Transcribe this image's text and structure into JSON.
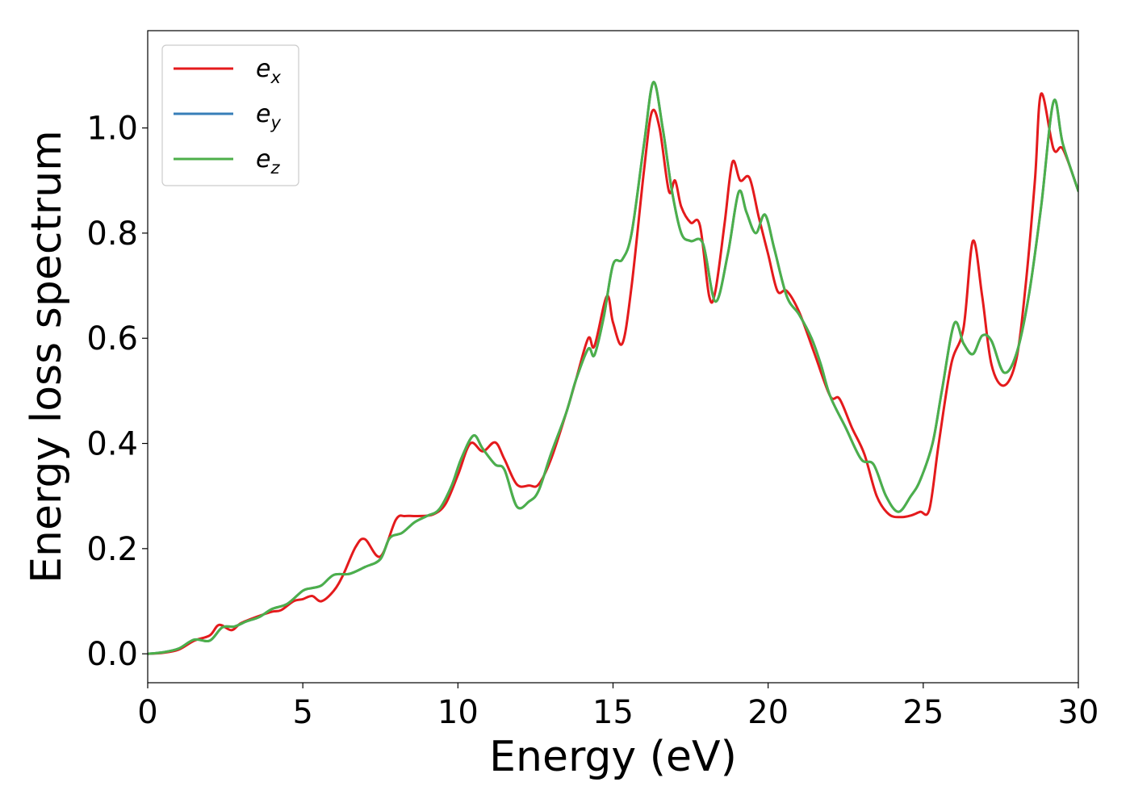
{
  "chart_data": {
    "type": "line",
    "xlabel": "Energy (eV)",
    "ylabel": "Energy loss spectrum",
    "xlim": [
      0,
      30
    ],
    "ylim": [
      -0.055,
      1.185
    ],
    "xticks": [
      0,
      5,
      10,
      15,
      20,
      25,
      30
    ],
    "xtick_labels": [
      "0",
      "5",
      "10",
      "15",
      "20",
      "25",
      "30"
    ],
    "yticks": [
      0.0,
      0.2,
      0.4,
      0.6,
      0.8,
      1.0
    ],
    "ytick_labels": [
      "0.0",
      "0.2",
      "0.4",
      "0.6",
      "0.8",
      "1.0"
    ],
    "grid": false,
    "legend_position": "top-left",
    "series": [
      {
        "name": "e_x",
        "label_base": "e",
        "label_sub": "x",
        "color": "#e41a1c",
        "points": [
          [
            0,
            0
          ],
          [
            0.5,
            0.002
          ],
          [
            1,
            0.008
          ],
          [
            1.5,
            0.025
          ],
          [
            2,
            0.035
          ],
          [
            2.3,
            0.055
          ],
          [
            2.7,
            0.045
          ],
          [
            3,
            0.058
          ],
          [
            3.5,
            0.07
          ],
          [
            4,
            0.08
          ],
          [
            4.3,
            0.083
          ],
          [
            4.7,
            0.1
          ],
          [
            5,
            0.104
          ],
          [
            5.3,
            0.11
          ],
          [
            5.6,
            0.1
          ],
          [
            6,
            0.12
          ],
          [
            6.3,
            0.15
          ],
          [
            6.7,
            0.203
          ],
          [
            7,
            0.218
          ],
          [
            7.5,
            0.185
          ],
          [
            8,
            0.255
          ],
          [
            8.3,
            0.262
          ],
          [
            8.7,
            0.262
          ],
          [
            9.2,
            0.265
          ],
          [
            9.6,
            0.285
          ],
          [
            10,
            0.34
          ],
          [
            10.4,
            0.4
          ],
          [
            10.8,
            0.385
          ],
          [
            11.2,
            0.402
          ],
          [
            11.5,
            0.37
          ],
          [
            11.9,
            0.322
          ],
          [
            12.3,
            0.32
          ],
          [
            12.6,
            0.322
          ],
          [
            13,
            0.37
          ],
          [
            13.5,
            0.46
          ],
          [
            13.8,
            0.52
          ],
          [
            14.2,
            0.6
          ],
          [
            14.4,
            0.585
          ],
          [
            14.8,
            0.68
          ],
          [
            15,
            0.63
          ],
          [
            15.3,
            0.59
          ],
          [
            15.6,
            0.7
          ],
          [
            16,
            0.92
          ],
          [
            16.25,
            1.03
          ],
          [
            16.5,
            1.0
          ],
          [
            16.8,
            0.88
          ],
          [
            17,
            0.9
          ],
          [
            17.2,
            0.85
          ],
          [
            17.5,
            0.82
          ],
          [
            17.8,
            0.815
          ],
          [
            18.1,
            0.68
          ],
          [
            18.3,
            0.69
          ],
          [
            18.6,
            0.82
          ],
          [
            18.85,
            0.935
          ],
          [
            19.1,
            0.9
          ],
          [
            19.4,
            0.905
          ],
          [
            19.7,
            0.83
          ],
          [
            20,
            0.76
          ],
          [
            20.3,
            0.69
          ],
          [
            20.6,
            0.69
          ],
          [
            21,
            0.65
          ],
          [
            21.5,
            0.57
          ],
          [
            22,
            0.49
          ],
          [
            22.3,
            0.485
          ],
          [
            22.7,
            0.43
          ],
          [
            23.1,
            0.38
          ],
          [
            23.5,
            0.3
          ],
          [
            23.9,
            0.265
          ],
          [
            24.3,
            0.26
          ],
          [
            24.6,
            0.263
          ],
          [
            24.9,
            0.27
          ],
          [
            25.2,
            0.275
          ],
          [
            25.5,
            0.4
          ],
          [
            25.9,
            0.55
          ],
          [
            26.3,
            0.62
          ],
          [
            26.6,
            0.785
          ],
          [
            26.9,
            0.68
          ],
          [
            27.2,
            0.55
          ],
          [
            27.6,
            0.51
          ],
          [
            28,
            0.56
          ],
          [
            28.3,
            0.7
          ],
          [
            28.6,
            0.9
          ],
          [
            28.8,
            1.065
          ],
          [
            29.2,
            0.96
          ],
          [
            29.5,
            0.96
          ],
          [
            30,
            0.88
          ]
        ]
      },
      {
        "name": "e_y",
        "label_base": "e",
        "label_sub": "y",
        "color": "#377eb8",
        "points": [
          [
            0,
            0
          ],
          [
            0.5,
            0.003
          ],
          [
            1,
            0.01
          ],
          [
            1.5,
            0.027
          ],
          [
            2,
            0.025
          ],
          [
            2.4,
            0.05
          ],
          [
            2.8,
            0.052
          ],
          [
            3.2,
            0.062
          ],
          [
            3.6,
            0.07
          ],
          [
            4,
            0.085
          ],
          [
            4.5,
            0.095
          ],
          [
            5,
            0.12
          ],
          [
            5.3,
            0.125
          ],
          [
            5.6,
            0.13
          ],
          [
            6,
            0.15
          ],
          [
            6.5,
            0.152
          ],
          [
            7,
            0.165
          ],
          [
            7.5,
            0.18
          ],
          [
            7.8,
            0.22
          ],
          [
            8.2,
            0.23
          ],
          [
            8.6,
            0.25
          ],
          [
            9,
            0.262
          ],
          [
            9.4,
            0.275
          ],
          [
            9.8,
            0.32
          ],
          [
            10.1,
            0.37
          ],
          [
            10.5,
            0.415
          ],
          [
            10.8,
            0.39
          ],
          [
            11.2,
            0.36
          ],
          [
            11.5,
            0.35
          ],
          [
            11.9,
            0.28
          ],
          [
            12.3,
            0.29
          ],
          [
            12.6,
            0.31
          ],
          [
            13,
            0.38
          ],
          [
            13.5,
            0.46
          ],
          [
            13.8,
            0.52
          ],
          [
            14.2,
            0.58
          ],
          [
            14.4,
            0.568
          ],
          [
            14.7,
            0.64
          ],
          [
            15,
            0.74
          ],
          [
            15.3,
            0.75
          ],
          [
            15.6,
            0.8
          ],
          [
            16,
            0.97
          ],
          [
            16.3,
            1.087
          ],
          [
            16.6,
            1.0
          ],
          [
            16.9,
            0.88
          ],
          [
            17.2,
            0.8
          ],
          [
            17.5,
            0.785
          ],
          [
            17.9,
            0.78
          ],
          [
            18.3,
            0.67
          ],
          [
            18.7,
            0.76
          ],
          [
            19.05,
            0.878
          ],
          [
            19.3,
            0.84
          ],
          [
            19.6,
            0.8
          ],
          [
            19.9,
            0.835
          ],
          [
            20.2,
            0.77
          ],
          [
            20.6,
            0.68
          ],
          [
            21,
            0.645
          ],
          [
            21.4,
            0.6
          ],
          [
            21.7,
            0.55
          ],
          [
            22,
            0.49
          ],
          [
            22.5,
            0.43
          ],
          [
            23,
            0.37
          ],
          [
            23.4,
            0.36
          ],
          [
            23.8,
            0.3
          ],
          [
            24.2,
            0.27
          ],
          [
            24.6,
            0.3
          ],
          [
            24.9,
            0.33
          ],
          [
            25.3,
            0.4
          ],
          [
            25.6,
            0.5
          ],
          [
            26,
            0.628
          ],
          [
            26.3,
            0.59
          ],
          [
            26.6,
            0.57
          ],
          [
            26.9,
            0.605
          ],
          [
            27.2,
            0.595
          ],
          [
            27.6,
            0.535
          ],
          [
            28,
            0.57
          ],
          [
            28.4,
            0.68
          ],
          [
            28.8,
            0.85
          ],
          [
            29.2,
            1.05
          ],
          [
            29.5,
            0.97
          ],
          [
            30,
            0.88
          ]
        ]
      },
      {
        "name": "e_z",
        "label_base": "e",
        "label_sub": "z",
        "color": "#4daf4a",
        "points": [
          [
            0,
            0
          ],
          [
            0.5,
            0.003
          ],
          [
            1,
            0.01
          ],
          [
            1.5,
            0.027
          ],
          [
            2,
            0.025
          ],
          [
            2.4,
            0.05
          ],
          [
            2.8,
            0.052
          ],
          [
            3.2,
            0.062
          ],
          [
            3.6,
            0.07
          ],
          [
            4,
            0.085
          ],
          [
            4.5,
            0.095
          ],
          [
            5,
            0.12
          ],
          [
            5.3,
            0.125
          ],
          [
            5.6,
            0.13
          ],
          [
            6,
            0.15
          ],
          [
            6.5,
            0.152
          ],
          [
            7,
            0.165
          ],
          [
            7.5,
            0.18
          ],
          [
            7.8,
            0.22
          ],
          [
            8.2,
            0.23
          ],
          [
            8.6,
            0.25
          ],
          [
            9,
            0.262
          ],
          [
            9.4,
            0.275
          ],
          [
            9.8,
            0.32
          ],
          [
            10.1,
            0.37
          ],
          [
            10.5,
            0.415
          ],
          [
            10.8,
            0.39
          ],
          [
            11.2,
            0.36
          ],
          [
            11.5,
            0.35
          ],
          [
            11.9,
            0.28
          ],
          [
            12.3,
            0.29
          ],
          [
            12.6,
            0.31
          ],
          [
            13,
            0.38
          ],
          [
            13.5,
            0.46
          ],
          [
            13.8,
            0.52
          ],
          [
            14.2,
            0.58
          ],
          [
            14.4,
            0.568
          ],
          [
            14.7,
            0.64
          ],
          [
            15,
            0.74
          ],
          [
            15.3,
            0.75
          ],
          [
            15.6,
            0.8
          ],
          [
            16,
            0.97
          ],
          [
            16.3,
            1.087
          ],
          [
            16.6,
            1.0
          ],
          [
            16.9,
            0.88
          ],
          [
            17.2,
            0.8
          ],
          [
            17.5,
            0.785
          ],
          [
            17.9,
            0.78
          ],
          [
            18.3,
            0.67
          ],
          [
            18.7,
            0.76
          ],
          [
            19.05,
            0.878
          ],
          [
            19.3,
            0.84
          ],
          [
            19.6,
            0.8
          ],
          [
            19.9,
            0.835
          ],
          [
            20.2,
            0.77
          ],
          [
            20.6,
            0.68
          ],
          [
            21,
            0.645
          ],
          [
            21.4,
            0.6
          ],
          [
            21.7,
            0.55
          ],
          [
            22,
            0.49
          ],
          [
            22.5,
            0.43
          ],
          [
            23,
            0.37
          ],
          [
            23.4,
            0.36
          ],
          [
            23.8,
            0.3
          ],
          [
            24.2,
            0.27
          ],
          [
            24.6,
            0.3
          ],
          [
            24.9,
            0.33
          ],
          [
            25.3,
            0.4
          ],
          [
            25.6,
            0.5
          ],
          [
            26,
            0.628
          ],
          [
            26.3,
            0.59
          ],
          [
            26.6,
            0.57
          ],
          [
            26.9,
            0.605
          ],
          [
            27.2,
            0.595
          ],
          [
            27.6,
            0.535
          ],
          [
            28,
            0.57
          ],
          [
            28.4,
            0.68
          ],
          [
            28.8,
            0.85
          ],
          [
            29.2,
            1.05
          ],
          [
            29.5,
            0.97
          ],
          [
            30,
            0.88
          ]
        ]
      }
    ]
  }
}
